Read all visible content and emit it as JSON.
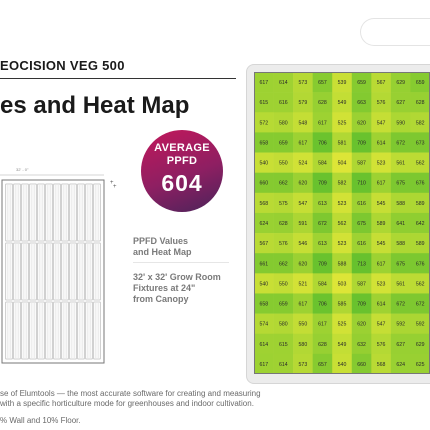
{
  "header": {
    "product": "EOCISION VEG 500",
    "title": "es and Heat Map"
  },
  "badge": {
    "line1": "AVERAGE",
    "line2": "PPFD",
    "value": "604"
  },
  "floorplan": {
    "dimension": "32' - 0\""
  },
  "caption1": {
    "line1": "PPFD Values",
    "line2": "and Heat Map"
  },
  "caption2": {
    "line1": "32' x 32' Grow Room",
    "line2": "Fixtures at 24\"",
    "line3": "from Canopy"
  },
  "footer": {
    "line1": "se of Elumtools — the most accurate software for creating and measuring",
    "line2": "with a specific horticulture mode for greenhouses and indoor cultivation.",
    "line3": "% Wall and 10% Floor."
  },
  "colors": {
    "badge_gradient": [
      "#c2185b",
      "#4a235a"
    ],
    "map_low": "#dfe637",
    "map_high": "#66c12e"
  },
  "heatmap": {
    "rows": [
      [
        617,
        614,
        573,
        657,
        539,
        659,
        567,
        629,
        659
      ],
      [
        615,
        616,
        579,
        628,
        549,
        663,
        576,
        627,
        628
      ],
      [
        572,
        580,
        548,
        617,
        525,
        620,
        547,
        590,
        582
      ],
      [
        658,
        659,
        617,
        706,
        581,
        709,
        614,
        672,
        673
      ],
      [
        540,
        550,
        524,
        584,
        504,
        587,
        523,
        561,
        562
      ],
      [
        660,
        662,
        620,
        709,
        582,
        710,
        617,
        675,
        676
      ],
      [
        568,
        575,
        547,
        613,
        523,
        616,
        545,
        588,
        589
      ],
      [
        624,
        628,
        591,
        672,
        562,
        675,
        589,
        641,
        642
      ],
      [
        567,
        576,
        546,
        613,
        523,
        616,
        545,
        588,
        589
      ],
      [
        661,
        662,
        620,
        709,
        588,
        713,
        617,
        675,
        676
      ],
      [
        540,
        550,
        521,
        584,
        503,
        587,
        523,
        561,
        562
      ],
      [
        658,
        659,
        617,
        706,
        585,
        709,
        614,
        672,
        672
      ],
      [
        574,
        580,
        550,
        617,
        525,
        620,
        547,
        592,
        592
      ],
      [
        614,
        615,
        580,
        628,
        549,
        632,
        576,
        627,
        629
      ],
      [
        617,
        614,
        573,
        657,
        540,
        660,
        568,
        624,
        625
      ]
    ]
  }
}
